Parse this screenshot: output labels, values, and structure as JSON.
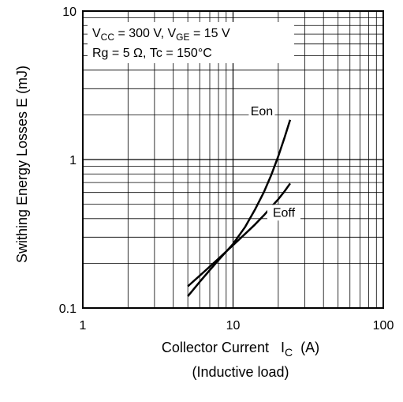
{
  "chart_data": {
    "type": "line",
    "x_scale": "log",
    "y_scale": "log",
    "xlim": [
      1,
      100
    ],
    "ylim": [
      0.1,
      10
    ],
    "grid": true,
    "x_ticks": [
      "1",
      "10",
      "100"
    ],
    "y_ticks": [
      "0.1",
      "1",
      "10"
    ],
    "xlabel": {
      "prefix": "Collector Current   I",
      "sub": "C",
      "suffix": "  (A)",
      "line2": "(Inductive load)"
    },
    "ylabel": "Swithing Energy Losses   E   (mJ)",
    "annotation": {
      "line1": [
        {
          "t": "V"
        },
        {
          "t": "CC",
          "sub": true
        },
        {
          "t": " = 300 V, V"
        },
        {
          "t": "GE",
          "sub": true
        },
        {
          "t": " = 15 V"
        }
      ],
      "line2": "Rg = 5 Ω, Tc = 150°C"
    },
    "series": [
      {
        "name": "Eon",
        "x": [
          5,
          6,
          7,
          8,
          10,
          12,
          14,
          16,
          18,
          20,
          22,
          24
        ],
        "y": [
          0.12,
          0.15,
          0.18,
          0.21,
          0.27,
          0.35,
          0.46,
          0.6,
          0.79,
          1.05,
          1.4,
          1.85
        ]
      },
      {
        "name": "Eoff",
        "x": [
          5,
          6,
          7,
          8,
          10,
          12,
          14,
          16,
          18,
          20,
          22,
          24
        ],
        "y": [
          0.14,
          0.165,
          0.19,
          0.215,
          0.265,
          0.315,
          0.365,
          0.42,
          0.48,
          0.54,
          0.61,
          0.69
        ]
      }
    ]
  }
}
